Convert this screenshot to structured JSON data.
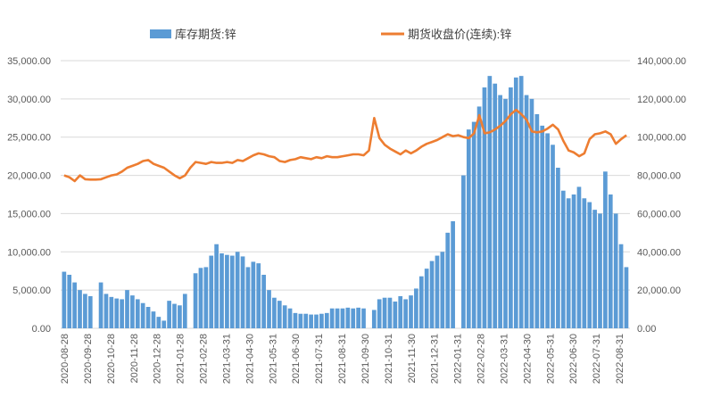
{
  "chart_data": {
    "type": "bar+line",
    "title": "",
    "legend": [
      {
        "name": "库存期货:锌",
        "type": "bar",
        "axis": "left",
        "color": "#5b9bd5"
      },
      {
        "name": "期货收盘价(连续):锌",
        "type": "line",
        "axis": "right",
        "color": "#ed7d31"
      }
    ],
    "legend_position": "top",
    "grid": true,
    "left_axis": {
      "min": 0,
      "max": 35000,
      "step": 5000,
      "tick_labels": [
        "0.00",
        "5,000.00",
        "10,000.00",
        "15,000.00",
        "20,000.00",
        "25,000.00",
        "30,000.00",
        "35,000.00"
      ]
    },
    "right_axis": {
      "min": 0,
      "max": 140000,
      "step": 20000,
      "tick_labels": [
        "0.00",
        "20,000.00",
        "40,000.00",
        "60,000.00",
        "80,000.00",
        "100,000.00",
        "120,000.00",
        "140,000.00"
      ]
    },
    "x_tick_labels": [
      "2020-08-28",
      "2020-09-28",
      "2020-10-28",
      "2020-11-28",
      "2020-12-28",
      "2021-01-28",
      "2021-02-28",
      "2021-03-31",
      "2021-04-30",
      "2021-05-31",
      "2021-06-30",
      "2021-07-31",
      "2021-08-31",
      "2021-09-30",
      "2021-10-31",
      "2021-11-30",
      "2021-12-31",
      "2022-01-31",
      "2022-02-28",
      "2022-03-31",
      "2022-04-30",
      "2022-05-31",
      "2022-06-30",
      "2022-07-31",
      "2022-08-31"
    ],
    "sampling": "approx. weekly",
    "series": [
      {
        "name": "库存期货:锌",
        "values": [
          7400,
          7000,
          6000,
          5000,
          4500,
          4200,
          null,
          6000,
          4500,
          4100,
          3900,
          3800,
          5000,
          4300,
          3800,
          3300,
          2800,
          2200,
          1500,
          1000,
          3600,
          3200,
          3000,
          4500,
          null,
          7200,
          7900,
          8000,
          9500,
          11000,
          9800,
          9600,
          9500,
          10000,
          9400,
          8000,
          8700,
          8500,
          7000,
          5000,
          4000,
          3600,
          3000,
          2600,
          2000,
          1900,
          1900,
          1800,
          1800,
          1900,
          2000,
          2600,
          2600,
          2600,
          2700,
          2600,
          2700,
          2600,
          null,
          2400,
          3800,
          4000,
          4000,
          3500,
          4200,
          3800,
          4300,
          5200,
          6800,
          7800,
          8800,
          9500,
          10000,
          12500,
          14000,
          null,
          20000,
          26000,
          27000,
          29000,
          31500,
          33000,
          32000,
          30500,
          30000,
          31500,
          32800,
          33000,
          30500,
          30000,
          28000,
          26500,
          25500,
          24000,
          21000,
          18000,
          17000,
          17500,
          18500,
          17000,
          16500,
          15500,
          15000,
          20500,
          17500,
          15000,
          11000,
          8000
        ]
      },
      {
        "name": "期货收盘价(连续):锌",
        "values": [
          80000,
          79000,
          77000,
          80000,
          78000,
          77800,
          77800,
          78000,
          79000,
          80000,
          80500,
          82000,
          84000,
          85000,
          86000,
          87500,
          88000,
          86000,
          85000,
          84000,
          82000,
          80000,
          78500,
          80000,
          84000,
          87000,
          86500,
          86000,
          87000,
          86500,
          86500,
          87000,
          86500,
          88000,
          87500,
          89000,
          90500,
          91500,
          91000,
          90000,
          89500,
          87500,
          87000,
          88000,
          88500,
          89500,
          89000,
          88500,
          89500,
          89000,
          90000,
          89500,
          89500,
          90000,
          90500,
          91000,
          91000,
          90500,
          93000,
          110000,
          99500,
          96000,
          94000,
          92500,
          91000,
          93000,
          91500,
          93000,
          95000,
          96500,
          97500,
          98500,
          100000,
          101500,
          100500,
          101000,
          100000,
          99500,
          102000,
          111500,
          102000,
          102500,
          104000,
          106000,
          108500,
          112000,
          114300,
          112000,
          109000,
          103000,
          102500,
          103000,
          104500,
          106500,
          104000,
          98000,
          93000,
          92000,
          90000,
          91500,
          99000,
          101500,
          102000,
          103000,
          101500,
          96500,
          99000,
          101000
        ]
      }
    ]
  }
}
